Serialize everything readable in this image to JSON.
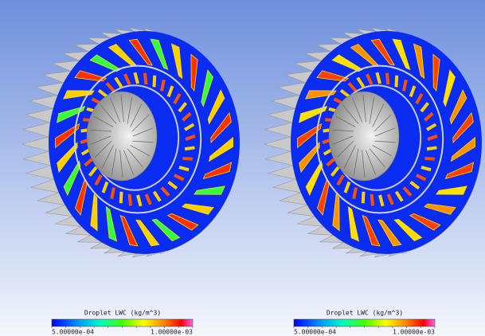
{
  "panels": [
    {
      "legend": {
        "title": "Droplet LWC (kg/m^3)",
        "min_label": "5.00000e-04",
        "max_label": "1.00000e-03"
      }
    },
    {
      "legend": {
        "title": "Droplet LWC (kg/m^3)",
        "min_label": "5.00000e-04",
        "max_label": "1.00000e-03"
      }
    }
  ]
}
